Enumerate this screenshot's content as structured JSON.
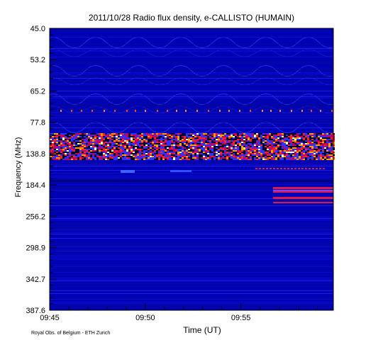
{
  "chart_data": {
    "type": "heatmap",
    "title": "2011/10/28  Radio flux density, e-CALLISTO (HUMAIN)",
    "xlabel": "Time (UT)",
    "ylabel": "Frequency (MHz)",
    "x_ticks": [
      "09:45",
      "09:50",
      "09:55"
    ],
    "x_range": [
      "09:45",
      "09:59:50"
    ],
    "y_ticks": [
      "45.0",
      "53.2",
      "65.2",
      "77.8",
      "138.8",
      "184.4",
      "256.2",
      "298.9",
      "342.7",
      "387.6"
    ],
    "y_axis": "frequency increasing downward",
    "colormap": [
      "#0000b4",
      "#3030ff",
      "#c00060",
      "#ff2020",
      "#ffa000",
      "#ffffc0"
    ],
    "features": [
      {
        "frequency_mhz": 68,
        "description": "intermittent narrowband red spikes across full time range"
      },
      {
        "frequency_mhz": 135,
        "description": "strong broadband bright emission band (orange/yellow/white) with dark absorption gaps, full time range"
      },
      {
        "frequency_mhz": 160,
        "description": "faint red dashed band appearing after ~09:56"
      },
      {
        "frequency_mhz": [
          195,
          215
        ],
        "description": "red horizontal bands beginning at ~09:56:30 to end"
      }
    ]
  },
  "credit": "Royal Obs. of Belgium - ETH Zurich"
}
